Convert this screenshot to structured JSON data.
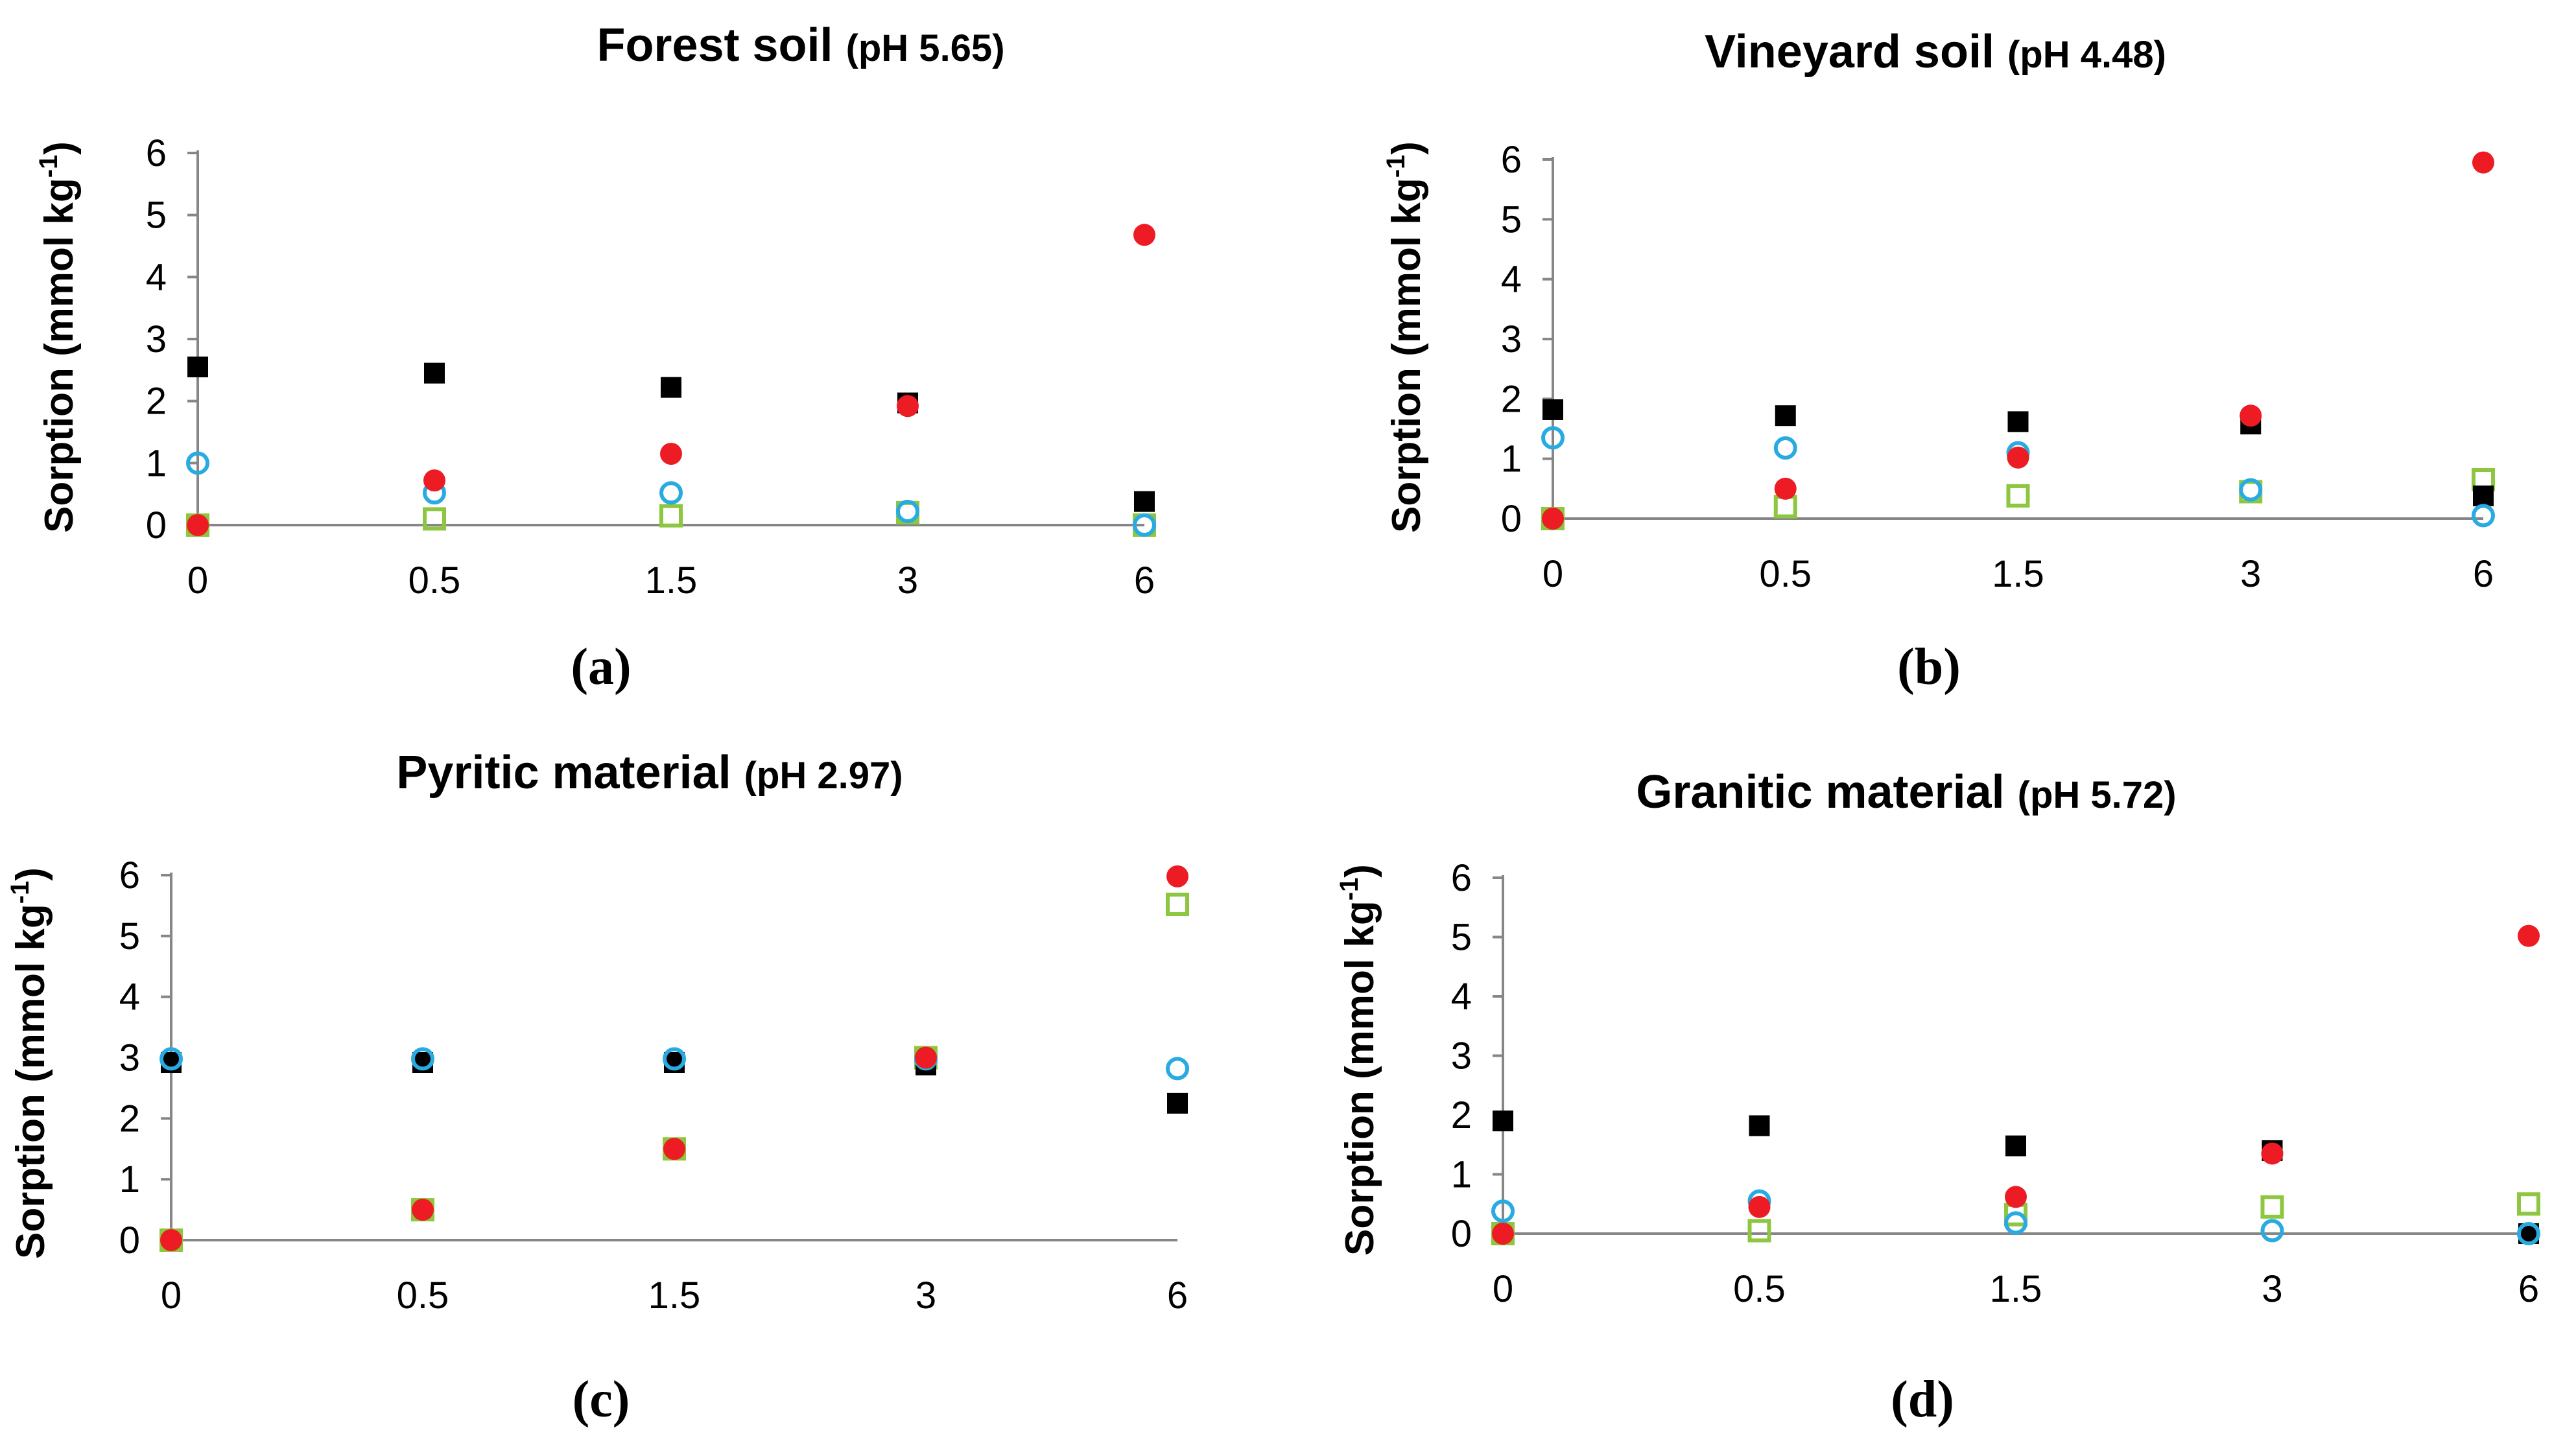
{
  "colors": {
    "black_square": "#000000",
    "green_square": "#8DC63F",
    "blue_circle": "#29ABE2",
    "red_circle": "#ED1C24",
    "axis": "#868686"
  },
  "chart_data": [
    {
      "type": "scatter",
      "panel_label": "(a)",
      "title": "Forest soil",
      "title_suffix": "(pH 5.65)",
      "ylabel": "Sorption (mmol kg",
      "ylabel_sup": "-1",
      "ylabel_tail": ")",
      "categories": [
        "0",
        "0.5",
        "1.5",
        "3",
        "6"
      ],
      "yticks": [
        "0",
        "1",
        "2",
        "3",
        "4",
        "5",
        "6"
      ],
      "ylim": [
        0,
        6
      ],
      "series": [
        {
          "style": "black_square",
          "values": [
            2.55,
            2.45,
            2.22,
            1.97,
            0.38
          ]
        },
        {
          "style": "green_square",
          "values": [
            0.0,
            0.1,
            0.15,
            0.2,
            0.0
          ]
        },
        {
          "style": "blue_circle",
          "values": [
            1.0,
            0.52,
            0.52,
            0.22,
            0.0
          ]
        },
        {
          "style": "red_circle",
          "values": [
            0.0,
            0.72,
            1.15,
            1.92,
            4.68
          ]
        }
      ]
    },
    {
      "type": "scatter",
      "panel_label": "(b)",
      "title": "Vineyard soil",
      "title_suffix": "(pH 4.48)",
      "ylabel": "Sorption (mmol kg",
      "ylabel_sup": "-1",
      "ylabel_tail": ")",
      "categories": [
        "0",
        "0.5",
        "1.5",
        "3",
        "6"
      ],
      "yticks": [
        "0",
        "1",
        "2",
        "3",
        "4",
        "5",
        "6"
      ],
      "ylim": [
        0,
        6
      ],
      "series": [
        {
          "style": "black_square",
          "values": [
            1.82,
            1.72,
            1.62,
            1.58,
            0.38
          ]
        },
        {
          "style": "green_square",
          "values": [
            0.0,
            0.2,
            0.38,
            0.45,
            0.65
          ]
        },
        {
          "style": "blue_circle",
          "values": [
            1.35,
            1.18,
            1.1,
            0.48,
            0.05
          ]
        },
        {
          "style": "red_circle",
          "values": [
            0.0,
            0.5,
            1.02,
            1.72,
            5.95
          ]
        }
      ]
    },
    {
      "type": "scatter",
      "panel_label": "(c)",
      "title": "Pyritic material",
      "title_suffix": "(pH 2.97)",
      "ylabel": "Sorption (mmol kg",
      "ylabel_sup": "-1",
      "ylabel_tail": ")",
      "categories": [
        "0",
        "0.5",
        "1.5",
        "3",
        "6"
      ],
      "yticks": [
        "0",
        "1",
        "2",
        "3",
        "4",
        "5",
        "6"
      ],
      "ylim": [
        0,
        6
      ],
      "series": [
        {
          "style": "black_square",
          "values": [
            2.92,
            2.92,
            2.92,
            2.88,
            2.25
          ]
        },
        {
          "style": "green_square",
          "values": [
            0.0,
            0.5,
            1.5,
            3.0,
            5.52
          ]
        },
        {
          "style": "blue_circle",
          "values": [
            2.98,
            2.98,
            2.98,
            2.98,
            2.82
          ]
        },
        {
          "style": "red_circle",
          "values": [
            0.0,
            0.5,
            1.5,
            3.0,
            5.98
          ]
        }
      ]
    },
    {
      "type": "scatter",
      "panel_label": "(d)",
      "title": "Granitic material",
      "title_suffix": "(pH 5.72)",
      "ylabel": "Sorption (mmol kg",
      "ylabel_sup": "-1",
      "ylabel_tail": ")",
      "categories": [
        "0",
        "0.5",
        "1.5",
        "3",
        "6"
      ],
      "yticks": [
        "0",
        "1",
        "2",
        "3",
        "4",
        "5",
        "6"
      ],
      "ylim": [
        0,
        6
      ],
      "series": [
        {
          "style": "black_square",
          "values": [
            1.9,
            1.82,
            1.48,
            1.4,
            0.0
          ]
        },
        {
          "style": "green_square",
          "values": [
            0.0,
            0.05,
            0.32,
            0.45,
            0.5
          ]
        },
        {
          "style": "blue_circle",
          "values": [
            0.38,
            0.55,
            0.18,
            0.05,
            0.0
          ]
        },
        {
          "style": "red_circle",
          "values": [
            0.0,
            0.45,
            0.62,
            1.35,
            5.02
          ]
        }
      ]
    }
  ]
}
